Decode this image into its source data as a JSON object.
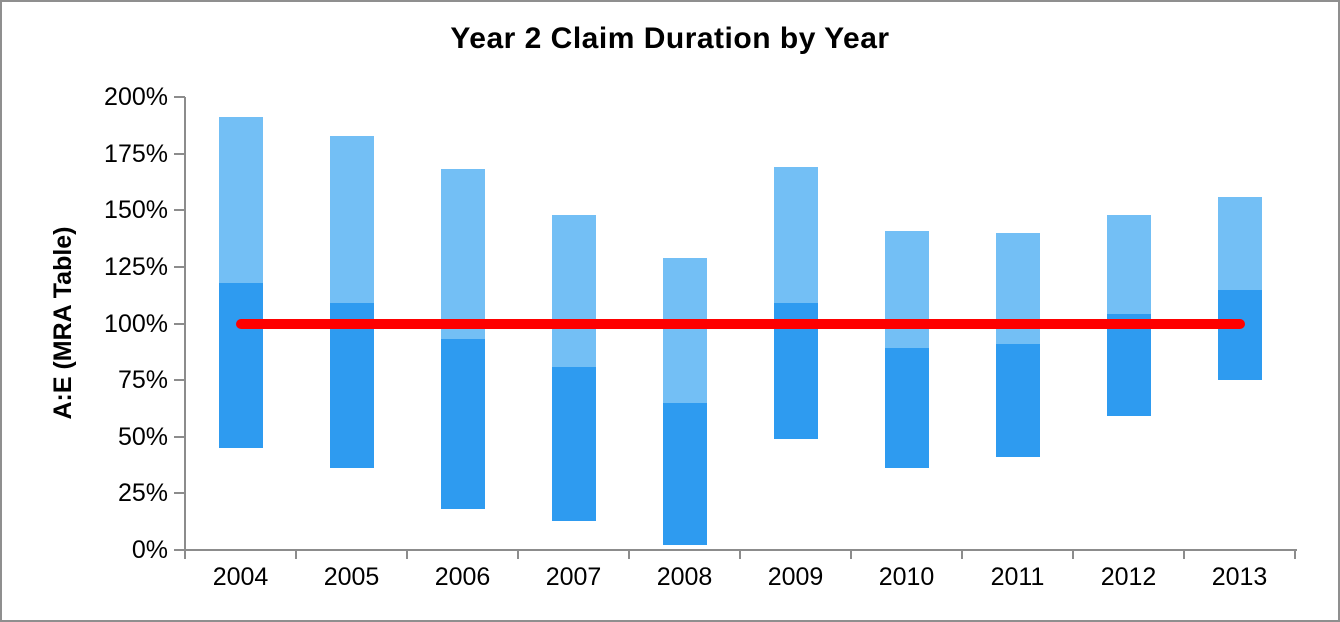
{
  "chart_data": {
    "type": "bar",
    "subtype": "floating_range_stacked_columns",
    "title": "Year 2 Claim Duration by Year",
    "xlabel": "",
    "ylabel": "A:E (MRA Table)",
    "categories": [
      "2004",
      "2005",
      "2006",
      "2007",
      "2008",
      "2009",
      "2010",
      "2011",
      "2012",
      "2013"
    ],
    "series": [
      {
        "name": "lower range segment (dark blue)",
        "color": "#2e9bf0",
        "from": [
          45,
          36,
          18,
          13,
          2,
          49,
          36,
          41,
          59,
          75
        ],
        "to": [
          118,
          109,
          93,
          81,
          65,
          109,
          89,
          91,
          104,
          115
        ]
      },
      {
        "name": "upper range segment (light blue)",
        "color": "#73bff5",
        "from": [
          118,
          109,
          93,
          81,
          65,
          109,
          89,
          91,
          104,
          115
        ],
        "to": [
          191,
          183,
          168,
          148,
          129,
          169,
          141,
          140,
          148,
          156
        ]
      }
    ],
    "reference_line": {
      "value": 100,
      "color": "#fe0000"
    },
    "y_axis": {
      "min": 0,
      "max": 200,
      "tick_step": 25,
      "tick_labels": [
        "0%",
        "25%",
        "50%",
        "75%",
        "100%",
        "125%",
        "150%",
        "175%",
        "200%"
      ]
    },
    "grid": "off",
    "legend": "none"
  }
}
